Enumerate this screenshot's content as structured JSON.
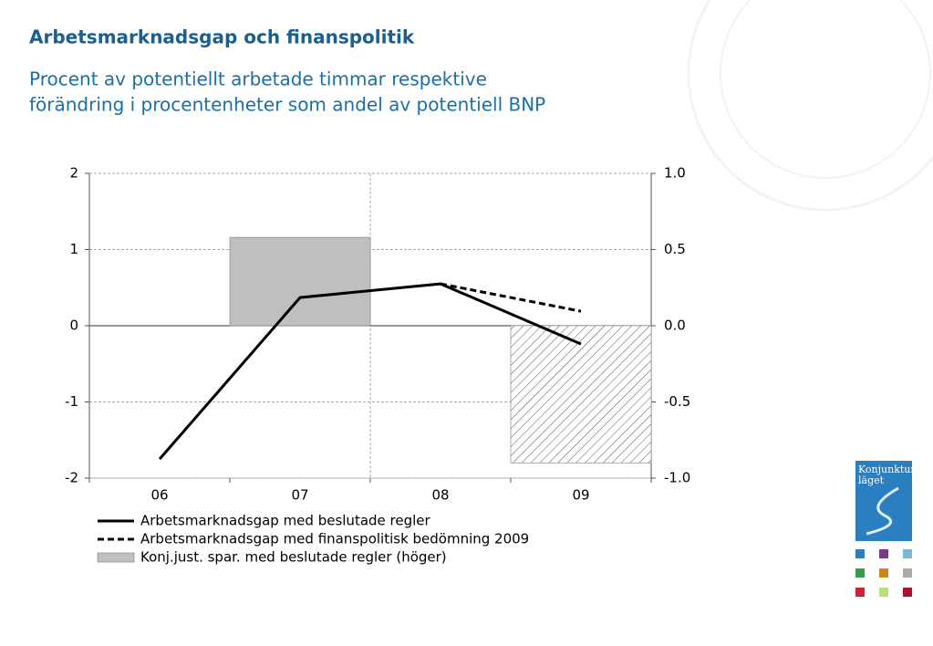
{
  "chart_data": {
    "type": "line",
    "title": "Arbetsmarknadsgap och finanspolitik",
    "subtitle": [
      "Procent av potentiellt arbetade timmar respektive",
      "förändring i procentenheter som andel av potentiell BNP"
    ],
    "categories": [
      "06",
      "07",
      "08",
      "09"
    ],
    "ylim": [
      -2,
      2
    ],
    "yticks": [
      -2,
      -1,
      0,
      1,
      2
    ],
    "y2lim": [
      -1,
      1
    ],
    "y2ticks": [
      {
        "value": -1,
        "label": "-1.0"
      },
      {
        "value": -0.5,
        "label": "-0.5"
      },
      {
        "value": 0,
        "label": "0.0"
      },
      {
        "value": 0.5,
        "label": "0.5"
      },
      {
        "value": 1,
        "label": "1.0"
      }
    ],
    "grid": true,
    "series": [
      {
        "name": "Arbetsmarknadsgap med beslutade regler",
        "type": "line",
        "color": "#000000",
        "dash": false,
        "values": [
          -1.75,
          0.37,
          0.55,
          -0.24
        ]
      },
      {
        "name": "Arbetsmarknadsgap med finanspolitisk bedömning 2009",
        "type": "line",
        "color": "#000000",
        "dash": true,
        "values": [
          null,
          null,
          0.55,
          0.19
        ]
      },
      {
        "name": "Konj.just. spar. med beslutade regler (höger)",
        "type": "bar",
        "axis": "y2",
        "color": "#bfbfbf",
        "hatched": [
          false,
          false,
          false,
          true
        ],
        "values": [
          0,
          0.58,
          0,
          -0.9
        ]
      }
    ],
    "logo": [
      "Konjunktur",
      "läget"
    ]
  }
}
